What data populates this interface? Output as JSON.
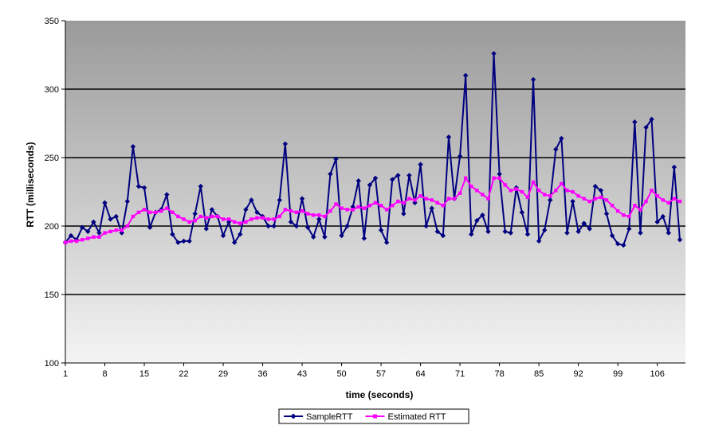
{
  "chart_data": {
    "type": "line",
    "title": "",
    "xlabel": "time (seconds)",
    "ylabel": "RTT (milliseconds)",
    "ylim": [
      100,
      350
    ],
    "yticks": [
      "100",
      "150",
      "200",
      "250",
      "300",
      "350"
    ],
    "xtick_labels": [
      "1",
      "8",
      "15",
      "22",
      "29",
      "36",
      "43",
      "50",
      "57",
      "64",
      "71",
      "78",
      "85",
      "92",
      "99",
      "106"
    ],
    "x_start": 1,
    "x_end": 111,
    "grid": "horizontal",
    "legend_position": "bottom-center",
    "series": [
      {
        "name": "SampleRTT",
        "color": "#000080",
        "marker": "diamond",
        "values": [
          188,
          193,
          190,
          199,
          196,
          203,
          195,
          217,
          205,
          207,
          195,
          218,
          258,
          229,
          228,
          199,
          210,
          212,
          223,
          194,
          188,
          189,
          189,
          209,
          229,
          198,
          212,
          207,
          193,
          203,
          188,
          194,
          212,
          219,
          210,
          207,
          200,
          200,
          219,
          260,
          203,
          200,
          220,
          199,
          192,
          205,
          192,
          238,
          249,
          193,
          200,
          214,
          233,
          191,
          230,
          235,
          197,
          188,
          234,
          237,
          209,
          237,
          217,
          245,
          200,
          213,
          196,
          193,
          265,
          220,
          251,
          310,
          194,
          204,
          208,
          196,
          326,
          238,
          196,
          195,
          228,
          210,
          194,
          307,
          189,
          197,
          219,
          256,
          264,
          195,
          218,
          196,
          202,
          198,
          229,
          226,
          209,
          193,
          187,
          186,
          198,
          276,
          195,
          272,
          278,
          203,
          207,
          195,
          243,
          190
        ]
      },
      {
        "name": "Estimated RTT",
        "color": "#ff00ff",
        "marker": "square",
        "values": [
          188,
          189,
          189,
          190,
          191,
          192,
          192,
          195,
          196,
          197,
          197,
          200,
          207,
          210,
          212,
          210,
          210,
          211,
          213,
          210,
          207,
          205,
          203,
          204,
          207,
          206,
          207,
          207,
          205,
          205,
          203,
          202,
          203,
          205,
          206,
          206,
          205,
          205,
          207,
          212,
          211,
          210,
          211,
          209,
          208,
          208,
          207,
          211,
          216,
          213,
          212,
          212,
          214,
          213,
          215,
          217,
          215,
          212,
          215,
          218,
          217,
          220,
          219,
          222,
          220,
          219,
          217,
          215,
          220,
          220,
          224,
          235,
          229,
          226,
          223,
          220,
          235,
          235,
          230,
          226,
          227,
          225,
          221,
          232,
          226,
          223,
          222,
          226,
          231,
          226,
          225,
          222,
          220,
          218,
          220,
          221,
          219,
          215,
          211,
          208,
          207,
          215,
          212,
          218,
          226,
          222,
          219,
          217,
          220,
          218
        ]
      }
    ]
  }
}
